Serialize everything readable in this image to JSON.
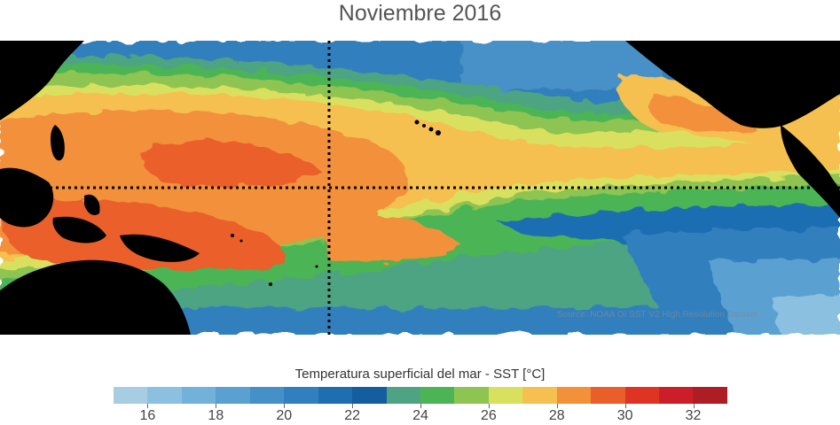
{
  "title": "Noviembre 2016",
  "map": {
    "source": "Source: NOAA OI SST V2 High Resolution Dataset",
    "land_color": "#000000",
    "reference_lines": [
      "equator",
      "date-line"
    ]
  },
  "colorbar": {
    "label": "Temperatura superficial del mar - SST  [°C]",
    "min": 15,
    "max": 33,
    "step": 1,
    "colors": [
      "#a7cde3",
      "#8cc0e0",
      "#72b1d9",
      "#5aa1d2",
      "#4690c8",
      "#317fbe",
      "#1f6eb2",
      "#145e9f",
      "#4ea482",
      "#4cb455",
      "#8ec451",
      "#d9e05e",
      "#f5c04f",
      "#f3903a",
      "#ea5e29",
      "#df3323",
      "#cc1e28",
      "#ae1d23"
    ],
    "tick_labels": [
      "16",
      "18",
      "20",
      "22",
      "24",
      "26",
      "28",
      "30",
      "32"
    ],
    "tick_values": [
      16,
      18,
      20,
      22,
      24,
      26,
      28,
      30,
      32
    ]
  }
}
